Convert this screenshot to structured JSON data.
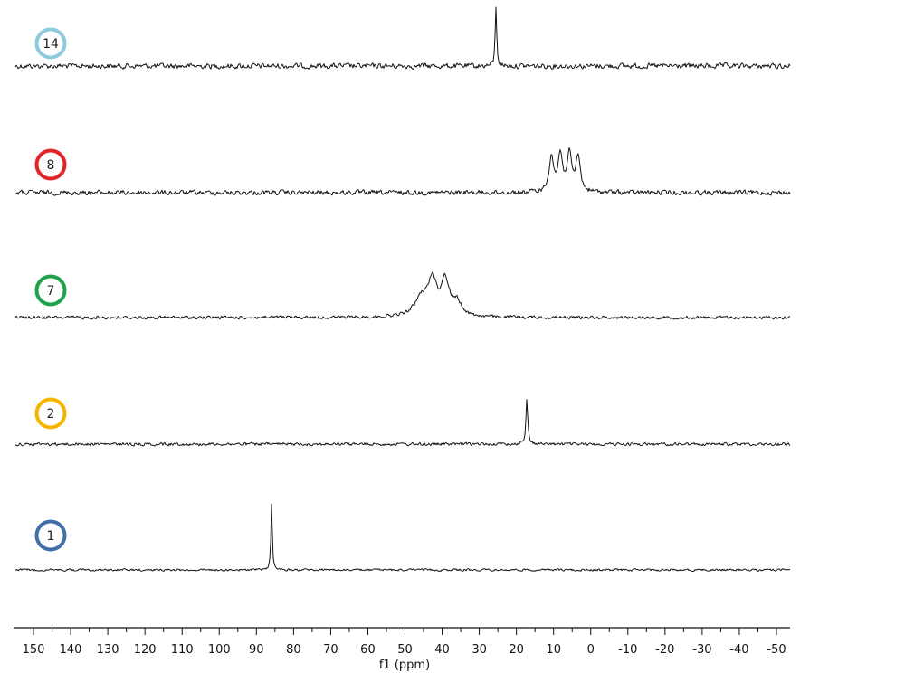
{
  "chart_data": {
    "type": "line",
    "title": "",
    "xlabel": "f1 (ppm)",
    "ylabel": "",
    "xlim": [
      155,
      -55
    ],
    "x_reversed": true,
    "x_ticks": [
      150,
      140,
      130,
      120,
      110,
      100,
      90,
      80,
      70,
      60,
      50,
      40,
      30,
      20,
      10,
      0,
      -10,
      -20,
      -30,
      -40,
      -50
    ],
    "grid": false,
    "series": [
      {
        "name": "14",
        "color": "#8ecbdd",
        "peaks": [
          {
            "ppm": 25.5,
            "height": 1.0,
            "width": 0.25
          }
        ]
      },
      {
        "name": "8",
        "color": "#e0262a",
        "peaks": [
          {
            "ppm": 10.6,
            "height": 0.62,
            "width": 0.7
          },
          {
            "ppm": 8.2,
            "height": 0.62,
            "width": 0.7
          },
          {
            "ppm": 5.8,
            "height": 0.64,
            "width": 0.7
          },
          {
            "ppm": 3.4,
            "height": 0.6,
            "width": 0.7
          }
        ]
      },
      {
        "name": "7",
        "color": "#1ea34c",
        "peaks": [
          {
            "ppm": 45.5,
            "height": 0.28,
            "width": 2.2
          },
          {
            "ppm": 42.6,
            "height": 0.5,
            "width": 1.3
          },
          {
            "ppm": 39.2,
            "height": 0.52,
            "width": 1.3
          },
          {
            "ppm": 36.0,
            "height": 0.2,
            "width": 1.5
          }
        ]
      },
      {
        "name": "2",
        "color": "#f5b400",
        "peaks": [
          {
            "ppm": 17.2,
            "height": 0.72,
            "width": 0.3
          }
        ]
      },
      {
        "name": "1",
        "color": "#3f70a8",
        "peaks": [
          {
            "ppm": 85.9,
            "height": 1.1,
            "width": 0.22
          }
        ]
      }
    ]
  }
}
